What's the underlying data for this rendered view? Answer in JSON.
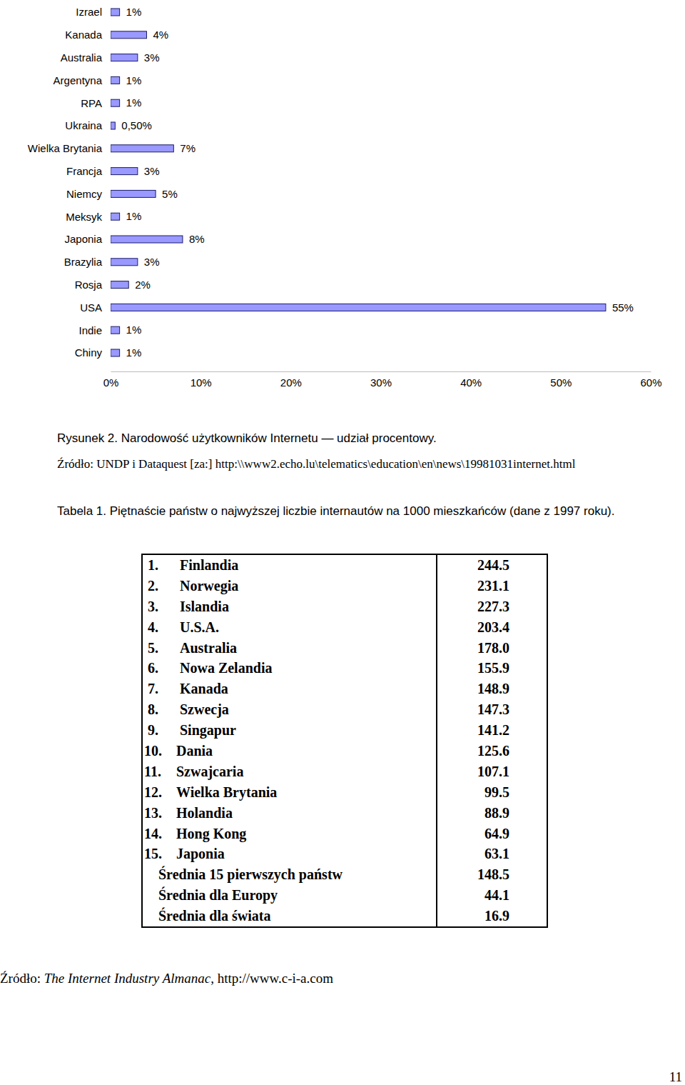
{
  "chart_data": {
    "type": "bar",
    "orientation": "horizontal",
    "data_labels": true,
    "grid": false,
    "color": "#9999ff",
    "categories": [
      "Izrael",
      "Kanada",
      "Australia",
      "Argentyna",
      "RPA",
      "Ukraina",
      "Wielka Brytania",
      "Francja",
      "Niemcy",
      "Meksyk",
      "Japonia",
      "Brazylia",
      "Rosja",
      "USA",
      "Indie",
      "Chiny"
    ],
    "values": [
      1,
      4,
      3,
      1,
      1,
      0.5,
      7,
      3,
      5,
      1,
      8,
      3,
      2,
      55,
      1,
      1
    ],
    "value_labels": [
      "1%",
      "4%",
      "3%",
      "1%",
      "1%",
      "0,50%",
      "7%",
      "3%",
      "5%",
      "1%",
      "8%",
      "3%",
      "2%",
      "55%",
      "1%",
      "1%"
    ],
    "xlim": [
      0,
      60
    ],
    "xticks": [
      {
        "value": 0,
        "label": "0%"
      },
      {
        "value": 10,
        "label": "10%"
      },
      {
        "value": 20,
        "label": "20%"
      },
      {
        "value": 30,
        "label": "30%"
      },
      {
        "value": 40,
        "label": "40%"
      },
      {
        "value": 50,
        "label": "50%"
      },
      {
        "value": 60,
        "label": "60%"
      }
    ]
  },
  "figure": {
    "caption": "Rysunek 2. Narodowość użytkowników Internetu — udział procentowy.",
    "source": "Źródło: UNDP i Dataquest [za:] http:\\\\www2.echo.lu\\telematics\\education\\en\\news\\19981031internet.html"
  },
  "table": {
    "caption": "Tabela 1. Piętnaście państw o najwyższej liczbie internautów na 1000 mieszkańców (dane z 1997 roku).",
    "rows": [
      {
        "rank": "1.",
        "name": "Finlandia",
        "value": "244.5"
      },
      {
        "rank": "2.",
        "name": "Norwegia",
        "value": "231.1"
      },
      {
        "rank": "3.",
        "name": "Islandia",
        "value": "227.3"
      },
      {
        "rank": "4.",
        "name": "U.S.A.",
        "value": "203.4"
      },
      {
        "rank": "5.",
        "name": "Australia",
        "value": "178.0"
      },
      {
        "rank": "6.",
        "name": "Nowa Zelandia",
        "value": "155.9"
      },
      {
        "rank": "7.",
        "name": "Kanada",
        "value": "148.9"
      },
      {
        "rank": "8.",
        "name": "Szwecja",
        "value": "147.3"
      },
      {
        "rank": "9.",
        "name": "Singapur",
        "value": "141.2"
      },
      {
        "rank": "10.",
        "name": "Dania",
        "value": "125.6"
      },
      {
        "rank": "11.",
        "name": "Szwajcaria",
        "value": "107.1"
      },
      {
        "rank": "12.",
        "name": "Wielka Brytania",
        "value": "99.5"
      },
      {
        "rank": "13.",
        "name": "Holandia",
        "value": "88.9"
      },
      {
        "rank": "14.",
        "name": "Hong Kong",
        "value": "64.9"
      },
      {
        "rank": "15.",
        "name": "Japonia",
        "value": "63.1"
      }
    ],
    "summary": [
      {
        "name": "Średnia 15 pierwszych państw",
        "value": "148.5"
      },
      {
        "name": "Średnia dla Europy",
        "value": "44.1"
      },
      {
        "name": "Średnia dla świata",
        "value": "16.9"
      }
    ],
    "source": {
      "prefix": "Źródło: ",
      "title": "The Internet Industry Almanac",
      "suffix": ", http://www.c-i-a.com"
    }
  },
  "page_number": "11"
}
